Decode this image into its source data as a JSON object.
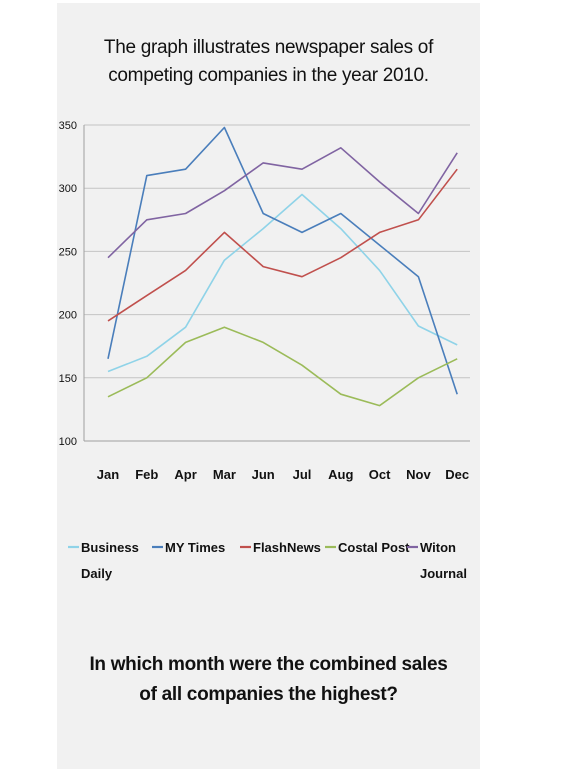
{
  "title_lines": [
    "The graph illustrates newspaper sales of",
    "competing companies in the year 2010."
  ],
  "question_lines": [
    "In which month were the combined sales",
    "of all companies the highest?"
  ],
  "chart_data": {
    "type": "line",
    "title": "The graph illustrates newspaper sales of competing companies in the year 2010.",
    "xlabel": "",
    "ylabel": "",
    "categories": [
      "Jan",
      "Feb",
      "Apr",
      "Mar",
      "Jun",
      "Jul",
      "Aug",
      "Oct",
      "Nov",
      "Dec"
    ],
    "ylim": [
      100,
      350
    ],
    "yticks": [
      100,
      150,
      200,
      250,
      300,
      350
    ],
    "grid": true,
    "legend_position": "bottom",
    "series": [
      {
        "name": "Business Daily",
        "legend_lines": [
          "Business",
          "Daily"
        ],
        "color": "#8fd3e8",
        "values": [
          155,
          167,
          190,
          243,
          268,
          295,
          268,
          235,
          191,
          176
        ]
      },
      {
        "name": "MY Times",
        "legend_lines": [
          "MY Times"
        ],
        "color": "#4a7ebb",
        "values": [
          165,
          310,
          315,
          348,
          280,
          265,
          280,
          255,
          230,
          137
        ]
      },
      {
        "name": "FlashNews",
        "legend_lines": [
          "FlashNews"
        ],
        "color": "#c0504d",
        "values": [
          195,
          215,
          235,
          265,
          238,
          230,
          245,
          265,
          275,
          315
        ]
      },
      {
        "name": "Costal Post",
        "legend_lines": [
          "Costal Post"
        ],
        "color": "#9bbb59",
        "values": [
          135,
          150,
          178,
          190,
          178,
          160,
          137,
          128,
          150,
          165
        ]
      },
      {
        "name": "Witon Journal",
        "legend_lines": [
          "Witon",
          "Journal"
        ],
        "color": "#8064a2",
        "values": [
          245,
          275,
          280,
          298,
          320,
          315,
          332,
          305,
          280,
          328
        ]
      }
    ]
  }
}
